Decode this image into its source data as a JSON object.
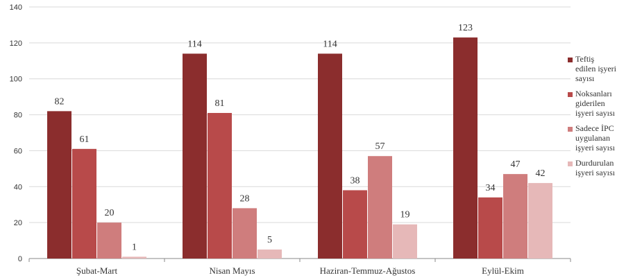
{
  "chart_data": {
    "type": "bar",
    "title": "",
    "xlabel": "",
    "ylabel": "",
    "ylim": [
      0,
      140
    ],
    "yticks": [
      0,
      20,
      40,
      60,
      80,
      100,
      120,
      140
    ],
    "grid": true,
    "legend_position": "right",
    "categories": [
      "Şubat-Mart",
      "Nisan Mayıs",
      "Haziran-Temmuz-Ağustos",
      "Eylül-Ekim"
    ],
    "series": [
      {
        "name": "Teftiş edilen işyeri sayısı",
        "color": "#8B2D2D",
        "values": [
          82,
          114,
          114,
          123
        ]
      },
      {
        "name": "Noksanları giderilen işyeri sayısı",
        "color": "#B84A4A",
        "values": [
          61,
          81,
          38,
          34
        ]
      },
      {
        "name": "Sadece İPC uygulanan işyeri sayısı",
        "color": "#CF7D7D",
        "values": [
          20,
          28,
          57,
          47
        ]
      },
      {
        "name": "Durdurulan işyeri sayısı",
        "color": "#E6B8B8",
        "values": [
          1,
          5,
          19,
          42
        ]
      }
    ]
  },
  "legend": {
    "items": [
      "Teftiş\nedilen işyeri\nsayısı",
      "Noksanları\ngiderilen\nişyeri sayısı",
      "Sadece İPC\nuygulanan\nişyeri sayısı",
      "Durdurulan\nişyeri sayısı"
    ]
  }
}
